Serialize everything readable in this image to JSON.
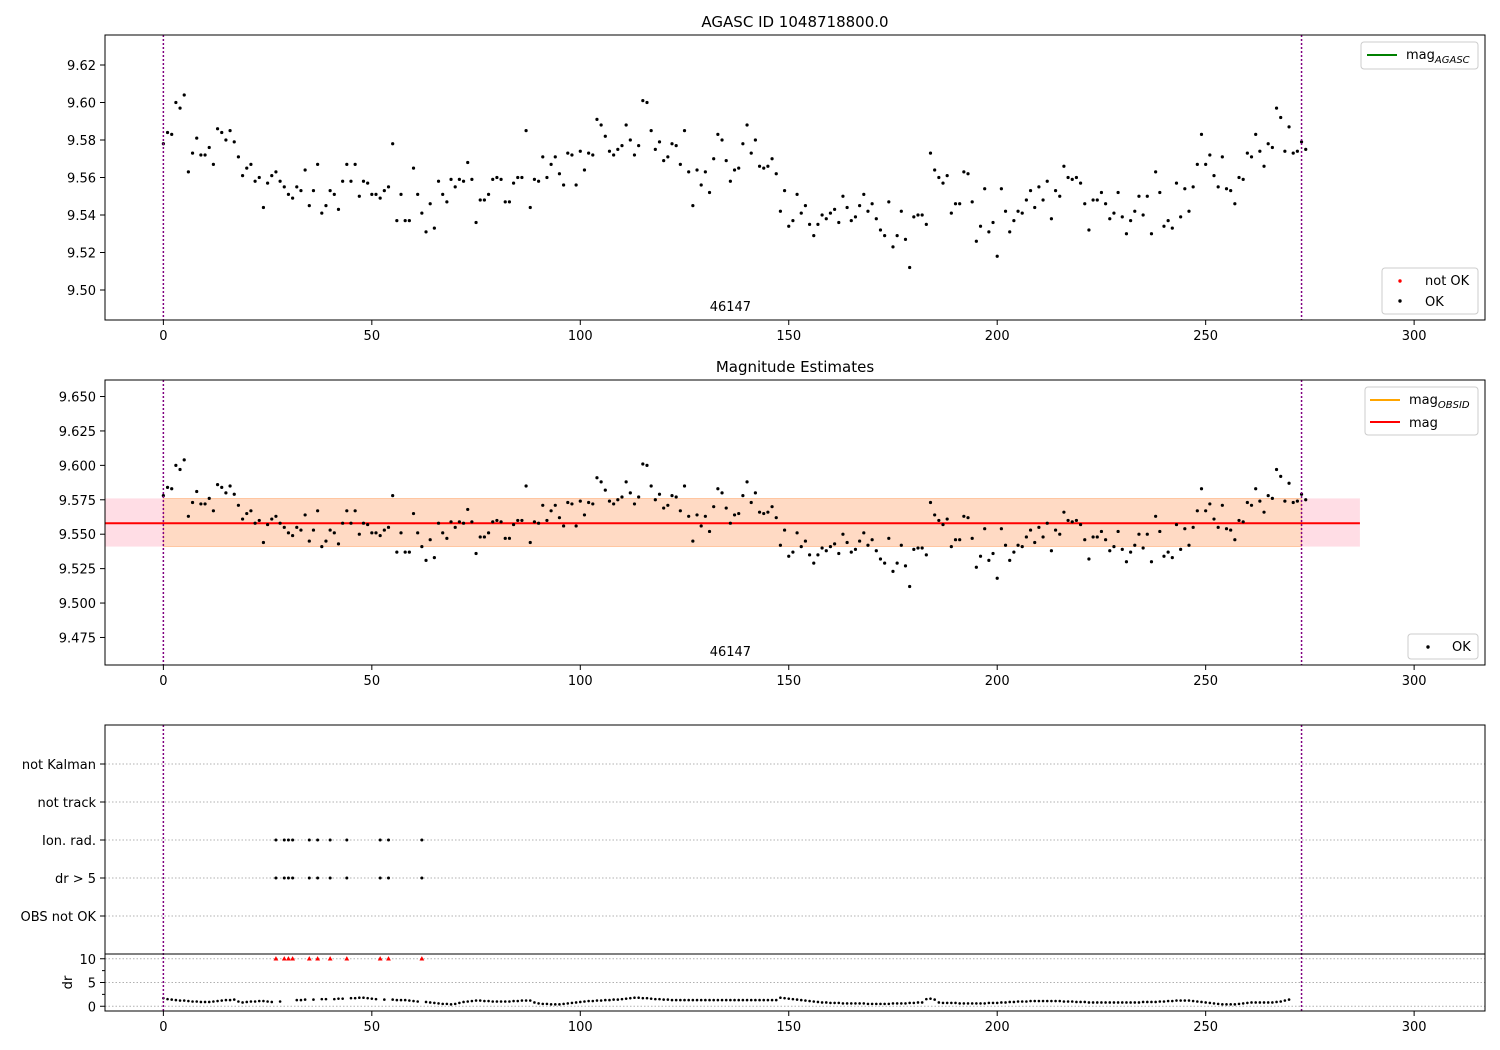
{
  "chart_data": [
    {
      "type": "scatter",
      "title": "AGASC ID 1048718800.0",
      "xlim": [
        -14,
        317
      ],
      "ylim": [
        9.484,
        9.636
      ],
      "xticks": [
        0,
        50,
        100,
        150,
        200,
        250,
        300
      ],
      "yticks": [
        9.5,
        9.52,
        9.54,
        9.56,
        9.58,
        9.6,
        9.62
      ],
      "ytick_labels": [
        "9.50",
        "9.52",
        "9.54",
        "9.56",
        "9.58",
        "9.60",
        "9.62"
      ],
      "obsid_label": "46147",
      "obsid_x": 136,
      "vlines": [
        0,
        273
      ],
      "legend_upper": [
        {
          "label": "mag",
          "subscript": "AGASC",
          "color": "#008000"
        }
      ],
      "legend_lower": [
        {
          "label": "not OK",
          "color": "#ff0000"
        },
        {
          "label": "OK",
          "color": "#000000"
        }
      ],
      "series": [
        {
          "name": "OK",
          "color": "#000000",
          "source": "mag_samples"
        }
      ]
    },
    {
      "type": "scatter",
      "title": "Magnitude Estimates",
      "xlim": [
        -14,
        317
      ],
      "ylim": [
        9.455,
        9.662
      ],
      "xticks": [
        0,
        50,
        100,
        150,
        200,
        250,
        300
      ],
      "yticks": [
        9.475,
        9.5,
        9.525,
        9.55,
        9.575,
        9.6,
        9.625,
        9.65
      ],
      "ytick_labels": [
        "9.475",
        "9.500",
        "9.525",
        "9.550",
        "9.575",
        "9.600",
        "9.625",
        "9.650"
      ],
      "obsid_label": "46147",
      "obsid_x": 136,
      "vlines": [
        0,
        273
      ],
      "mag_line": {
        "y": 9.558,
        "x": [
          -14,
          287
        ],
        "color": "#ff0000"
      },
      "mag_band": {
        "y": [
          9.541,
          9.576
        ],
        "x": [
          -14,
          287
        ],
        "color": "#ffd1dc"
      },
      "obsid_band": {
        "y": [
          9.541,
          9.576
        ],
        "x": [
          0,
          273
        ],
        "color": "#ffd9c0"
      },
      "legend_upper": [
        {
          "label": "mag",
          "subscript": "OBSID",
          "color": "#ffa500"
        },
        {
          "label": "mag",
          "subscript": "",
          "color": "#ff0000"
        }
      ],
      "legend_lower": [
        {
          "label": "OK",
          "color": "#000000"
        }
      ],
      "series": [
        {
          "name": "OK",
          "color": "#000000",
          "source": "mag_samples"
        }
      ]
    },
    {
      "type": "scatter",
      "xlim": [
        -14,
        317
      ],
      "xticks": [
        0,
        50,
        100,
        150,
        200,
        250,
        300
      ],
      "vlines": [
        0,
        273
      ],
      "flag_rows": [
        "not Kalman",
        "not track",
        "Ion. rad.",
        "dr > 5",
        "OBS not OK"
      ],
      "flag_points": {
        "Ion. rad.": [
          27,
          29,
          30,
          31,
          35,
          37,
          40,
          44,
          52,
          54,
          62
        ],
        "dr > 5": [
          27,
          29,
          30,
          31,
          35,
          37,
          40,
          44,
          52,
          54,
          62
        ]
      },
      "dr": {
        "ylabel": "dr",
        "ylim": [
          -1,
          11
        ],
        "yticks": [
          0,
          5,
          10
        ],
        "outliers_clipped_at": 10,
        "outlier_x": [
          27,
          29,
          30,
          31,
          35,
          37,
          40,
          44,
          52,
          54,
          62
        ],
        "outlier_color": "#ff0000",
        "normal_color": "#000000"
      }
    }
  ],
  "mag_samples": {
    "x_start": 0,
    "x_step": 1,
    "values": [
      9.578,
      9.584,
      9.583,
      9.6,
      9.597,
      9.604,
      9.563,
      9.573,
      9.581,
      9.572,
      9.572,
      9.576,
      9.567,
      9.586,
      9.584,
      9.58,
      9.585,
      9.579,
      9.571,
      9.561,
      9.565,
      9.567,
      9.558,
      9.56,
      9.544,
      9.557,
      9.561,
      9.563,
      9.558,
      9.555,
      9.551,
      9.549,
      9.555,
      9.553,
      9.564,
      9.545,
      9.553,
      9.567,
      9.541,
      9.545,
      9.553,
      9.551,
      9.543,
      9.558,
      9.567,
      9.558,
      9.567,
      9.55,
      9.558,
      9.557,
      9.551,
      9.551,
      9.549,
      9.553,
      9.555,
      9.578,
      9.537,
      9.551,
      9.537,
      9.537,
      9.565,
      9.551,
      9.541,
      9.531,
      9.546,
      9.533,
      9.558,
      9.551,
      9.547,
      9.559,
      9.555,
      9.559,
      9.558,
      9.568,
      9.559,
      9.536,
      9.548,
      9.548,
      9.551,
      9.559,
      9.56,
      9.559,
      9.547,
      9.547,
      9.557,
      9.56,
      9.56,
      9.585,
      9.544,
      9.559,
      9.558,
      9.571,
      9.56,
      9.567,
      9.571,
      9.562,
      9.556,
      9.573,
      9.572,
      9.556,
      9.574,
      9.564,
      9.573,
      9.572,
      9.591,
      9.588,
      9.582,
      9.574,
      9.572,
      9.575,
      9.577,
      9.588,
      9.58,
      9.572,
      9.577,
      9.601,
      9.6,
      9.585,
      9.575,
      9.579,
      9.569,
      9.571,
      9.578,
      9.577,
      9.567,
      9.585,
      9.563,
      9.545,
      9.564,
      9.556,
      9.563,
      9.552,
      9.57,
      9.583,
      9.58,
      9.569,
      9.558,
      9.564,
      9.565,
      9.578,
      9.588,
      9.573,
      9.58,
      9.566,
      9.565,
      9.566,
      9.57,
      9.562,
      9.542,
      9.553,
      9.534,
      9.537,
      9.551,
      9.541,
      9.545,
      9.535,
      9.529,
      9.535,
      9.54,
      9.538,
      9.541,
      9.543,
      9.536,
      9.55,
      9.544,
      9.537,
      9.539,
      9.545,
      9.551,
      9.542,
      9.546,
      9.538,
      9.532,
      9.529,
      9.547,
      9.523,
      9.529,
      9.542,
      9.527,
      9.512,
      9.539,
      9.54,
      9.54,
      9.535,
      9.573,
      9.564,
      9.56,
      9.557,
      9.561,
      9.541,
      9.546,
      9.546,
      9.563,
      9.562,
      9.547,
      9.526,
      9.534,
      9.554,
      9.531,
      9.536,
      9.518,
      9.554,
      9.542,
      9.531,
      9.537,
      9.542,
      9.541,
      9.548,
      9.553,
      9.544,
      9.555,
      9.548,
      9.558,
      9.538,
      9.553,
      9.55,
      9.566,
      9.56,
      9.559,
      9.56,
      9.557,
      9.546,
      9.532,
      9.548,
      9.548,
      9.552,
      9.546,
      9.538,
      9.541,
      9.552,
      9.539,
      9.53,
      9.537,
      9.542,
      9.55,
      9.54,
      9.55,
      9.53,
      9.563,
      9.552,
      9.534,
      9.537,
      9.533,
      9.557,
      9.539,
      9.554,
      9.542,
      9.555,
      9.567,
      9.583,
      9.567,
      9.572,
      9.561,
      9.555,
      9.571,
      9.554,
      9.553,
      9.546,
      9.56,
      9.559,
      9.573,
      9.571,
      9.583,
      9.574,
      9.566,
      9.578,
      9.576,
      9.597,
      9.592,
      9.574,
      9.587,
      9.573,
      9.574,
      9.579,
      9.575
    ]
  },
  "dr_samples": {
    "x_start": 0,
    "x_step": 1,
    "values": [
      1.7,
      1.5,
      1.4,
      1.3,
      1.2,
      1.2,
      1.1,
      1.0,
      1.0,
      0.9,
      0.9,
      0.9,
      1.0,
      1.1,
      1.2,
      1.3,
      1.3,
      1.4,
      1.0,
      0.8,
      0.9,
      1.0,
      1.0,
      1.1,
      1.1,
      1.0,
      0.9,
      10,
      1.0,
      10,
      10,
      10,
      1.3,
      1.3,
      1.4,
      10,
      1.4,
      10,
      1.5,
      1.5,
      10,
      1.5,
      1.6,
      1.6,
      10,
      1.7,
      1.7,
      1.8,
      1.8,
      1.7,
      1.6,
      1.5,
      10,
      1.4,
      10,
      1.4,
      1.3,
      1.3,
      1.3,
      1.2,
      1.1,
      1.0,
      10,
      0.9,
      0.8,
      0.7,
      0.6,
      0.5,
      0.5,
      0.4,
      0.5,
      0.7,
      0.9,
      1.0,
      1.1,
      1.2,
      1.2,
      1.1,
      1.1,
      1.0,
      1.0,
      1.0,
      1.0,
      1.0,
      1.1,
      1.1,
      1.2,
      1.2,
      1.2,
      0.8,
      0.6,
      0.5,
      0.5,
      0.4,
      0.4,
      0.4,
      0.5,
      0.6,
      0.7,
      0.8,
      0.9,
      1.0,
      1.1,
      1.1,
      1.2,
      1.2,
      1.3,
      1.3,
      1.4,
      1.4,
      1.5,
      1.6,
      1.7,
      1.8,
      1.8,
      1.7,
      1.7,
      1.6,
      1.5,
      1.5,
      1.4,
      1.4,
      1.3,
      1.3,
      1.3,
      1.3,
      1.3,
      1.3,
      1.3,
      1.3,
      1.3,
      1.3,
      1.3,
      1.3,
      1.3,
      1.3,
      1.3,
      1.3,
      1.3,
      1.3,
      1.3,
      1.3,
      1.3,
      1.3,
      1.3,
      1.3,
      1.3,
      1.3,
      1.8,
      1.7,
      1.6,
      1.5,
      1.4,
      1.3,
      1.2,
      1.1,
      1.0,
      0.9,
      0.8,
      0.8,
      0.7,
      0.7,
      0.7,
      0.6,
      0.6,
      0.6,
      0.6,
      0.6,
      0.6,
      0.5,
      0.5,
      0.5,
      0.5,
      0.5,
      0.5,
      0.6,
      0.6,
      0.6,
      0.6,
      0.7,
      0.7,
      0.8,
      0.8,
      1.5,
      1.6,
      1.4,
      0.8,
      0.7,
      0.7,
      0.7,
      0.7,
      0.6,
      0.6,
      0.6,
      0.6,
      0.6,
      0.6,
      0.6,
      0.7,
      0.7,
      0.7,
      0.8,
      0.8,
      0.9,
      0.9,
      1.0,
      1.0,
      1.0,
      1.1,
      1.1,
      1.1,
      1.1,
      1.1,
      1.1,
      1.1,
      1.1,
      1.0,
      1.0,
      1.0,
      0.9,
      0.9,
      0.9,
      0.8,
      0.8,
      0.8,
      0.8,
      0.8,
      0.8,
      0.8,
      0.8,
      0.8,
      0.8,
      0.8,
      0.8,
      0.8,
      0.9,
      0.9,
      0.9,
      0.9,
      1.0,
      1.0,
      1.1,
      1.1,
      1.2,
      1.2,
      1.2,
      1.2,
      1.1,
      1.0,
      0.9,
      0.8,
      0.7,
      0.6,
      0.5,
      0.4,
      0.4,
      0.4,
      0.4,
      0.5,
      0.6,
      0.7,
      0.8,
      0.8,
      0.8,
      0.8,
      0.8,
      0.8,
      0.9,
      1.0,
      1.2,
      1.4
    ]
  }
}
